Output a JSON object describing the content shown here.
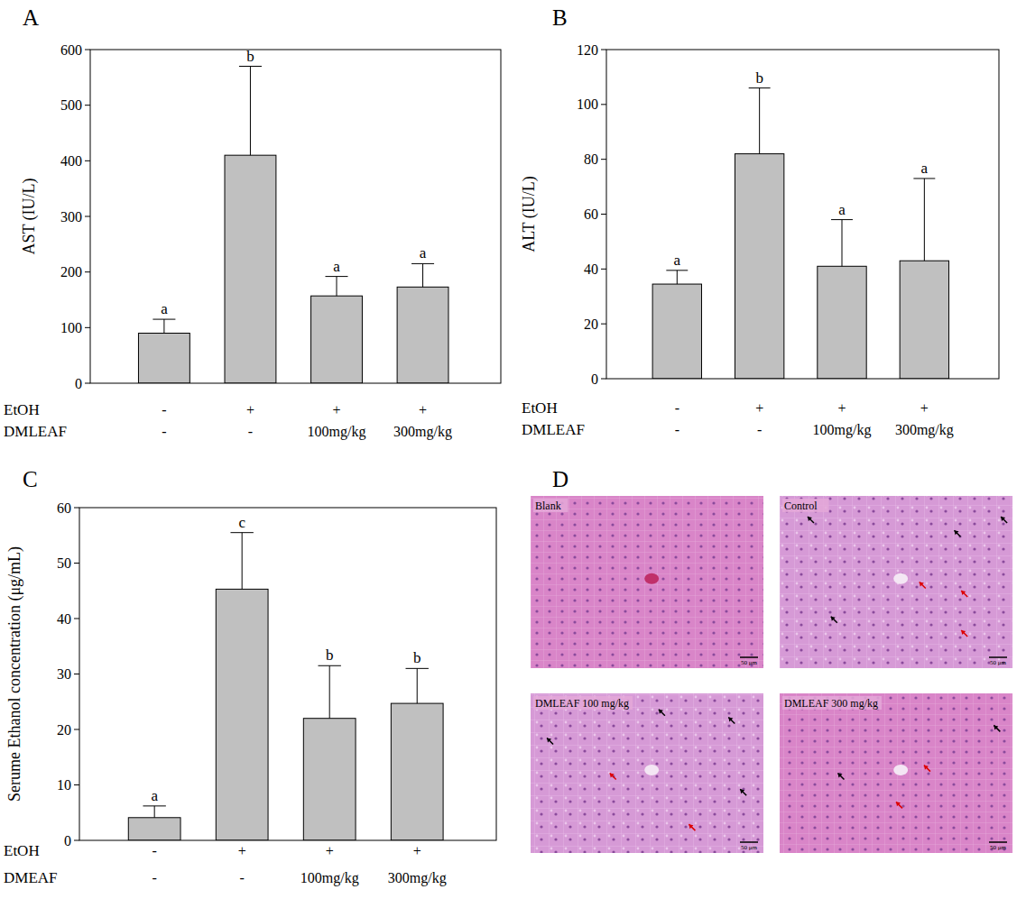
{
  "chart_data": [
    {
      "type": "bar",
      "panel_label": "A",
      "ylabel": "AST (IU/L)",
      "category_rows": [
        {
          "label": "EtOH",
          "values": [
            "-",
            "+",
            "+",
            "+"
          ]
        },
        {
          "label": "DMLEAF",
          "values": [
            "-",
            "-",
            "100mg/kg",
            "300mg/kg"
          ]
        }
      ],
      "values": [
        90,
        410,
        157,
        173
      ],
      "errors": [
        25,
        160,
        35,
        42
      ],
      "letters": [
        "a",
        "b",
        "a",
        "a"
      ],
      "color": "#c0c0c0",
      "ylim": [
        0,
        600
      ],
      "yticks": [
        0,
        100,
        200,
        300,
        400,
        500,
        600
      ],
      "grid": false
    },
    {
      "type": "bar",
      "panel_label": "B",
      "ylabel": "ALT (IU/L)",
      "category_rows": [
        {
          "label": "EtOH",
          "values": [
            "-",
            "+",
            "+",
            "+"
          ]
        },
        {
          "label": "DMLEAF",
          "values": [
            "-",
            "-",
            "100mg/kg",
            "300mg/kg"
          ]
        }
      ],
      "values": [
        34.5,
        82,
        41,
        43
      ],
      "errors": [
        5,
        24,
        17,
        30
      ],
      "letters": [
        "a",
        "b",
        "a",
        "a"
      ],
      "color": "#c0c0c0",
      "ylim": [
        0,
        120
      ],
      "yticks": [
        0,
        20,
        40,
        60,
        80,
        100,
        120
      ],
      "grid": false
    },
    {
      "type": "bar",
      "panel_label": "C",
      "ylabel": "Serume Ethanol concentration (μg/mL)",
      "category_rows": [
        {
          "label": "EtOH",
          "values": [
            "-",
            "+",
            "+",
            "+"
          ]
        },
        {
          "label": "DMEAF",
          "values": [
            "-",
            "-",
            "100mg/kg",
            "300mg/kg"
          ]
        }
      ],
      "values": [
        4.1,
        45.3,
        22,
        24.7
      ],
      "errors": [
        2.1,
        10.2,
        9.5,
        6.3
      ],
      "letters": [
        "a",
        "c",
        "b",
        "b"
      ],
      "color": "#c0c0c0",
      "ylim": [
        0,
        60
      ],
      "yticks": [
        0,
        10,
        20,
        30,
        40,
        50,
        60
      ],
      "grid": false
    }
  ],
  "histology": {
    "panel_label": "D",
    "scale_bar": "50 μm",
    "images": [
      {
        "label": "Blank"
      },
      {
        "label": "Control"
      },
      {
        "label": "DMLEAF 100 mg/kg"
      },
      {
        "label": "DMLEAF 300 mg/kg"
      }
    ]
  }
}
